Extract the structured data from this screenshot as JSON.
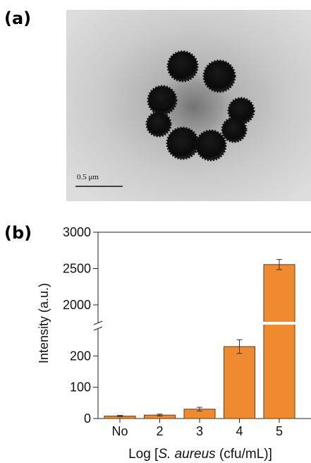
{
  "panel_a": {
    "label": "(a)",
    "scale_bar_label": "0.5 μm"
  },
  "panel_b": {
    "label": "(b)"
  },
  "chart_data": {
    "type": "bar",
    "categories": [
      "No",
      "2",
      "3",
      "4",
      "5"
    ],
    "values": [
      8,
      11,
      30,
      230,
      2555
    ],
    "errors": [
      2,
      3,
      6,
      22,
      70
    ],
    "ylabel": "Intensity (a.u.)",
    "xlabel_parts": [
      {
        "text": "Log [",
        "italic": false
      },
      {
        "text": "S. aureus",
        "italic": true
      },
      {
        "text": " (cfu/mL)]",
        "italic": false
      }
    ],
    "y_axis_broken": true,
    "y_lower_segment": {
      "range": [
        0,
        300
      ],
      "ticks": [
        "0",
        "100",
        "200"
      ]
    },
    "y_upper_segment": {
      "range": [
        2000,
        3000
      ],
      "ticks": [
        "2000",
        "2500",
        "3000"
      ]
    },
    "grid": false,
    "bar_color": "#f08a2f"
  }
}
